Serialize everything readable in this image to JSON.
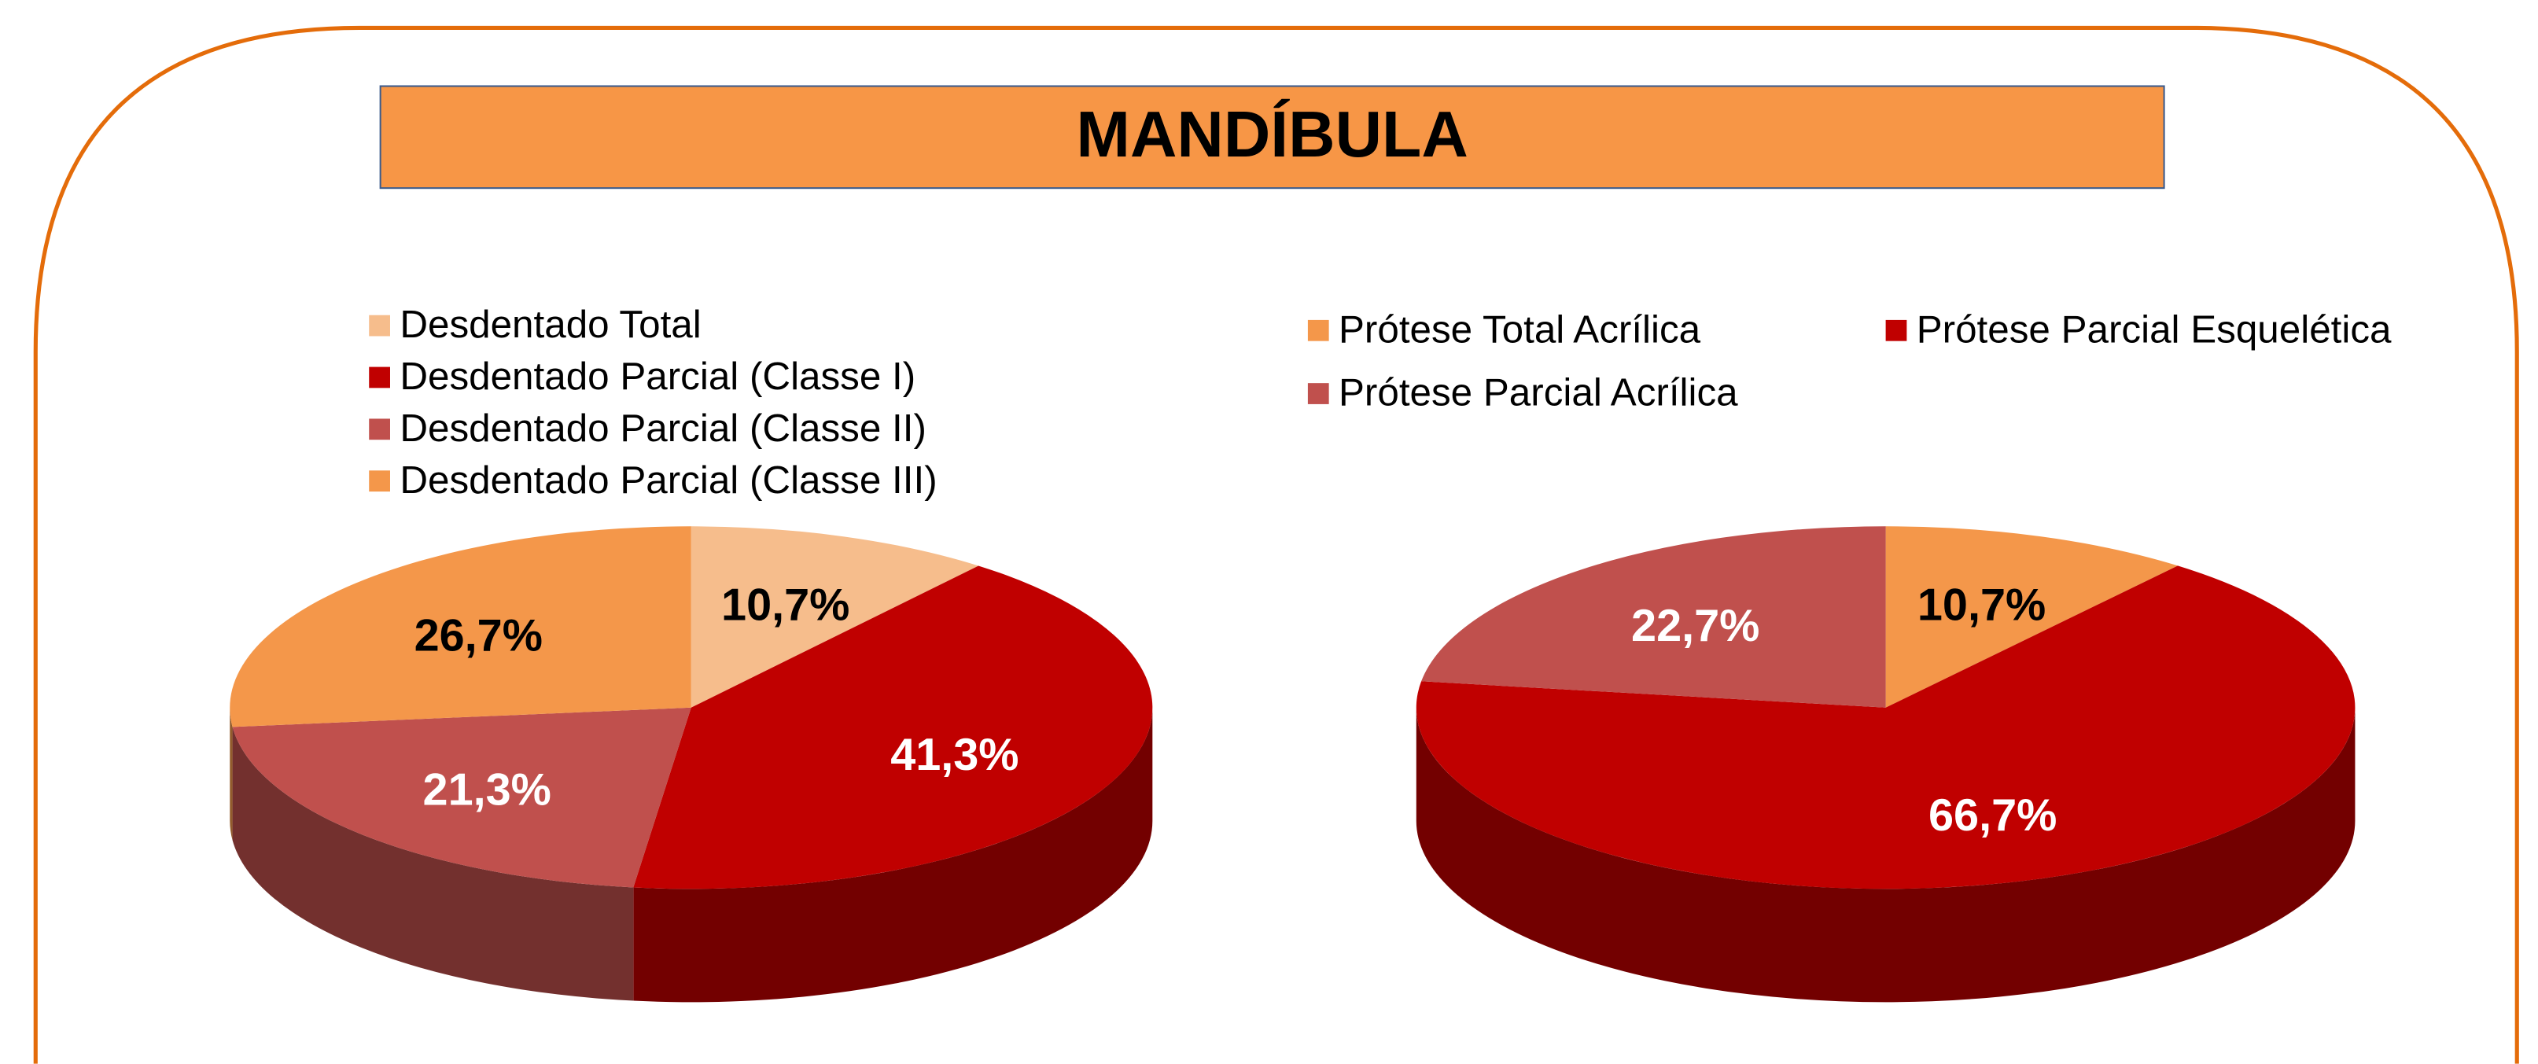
{
  "title": "MANDÍBULA",
  "chart_data": [
    {
      "type": "pie",
      "categories": [
        "Desdentado Total",
        "Desdentado Parcial (Classe I)",
        "Desdentado Parcial (Classe II)",
        "Desdentado Parcial (Classe III)"
      ],
      "values": [
        10.7,
        41.3,
        21.3,
        26.7
      ],
      "value_labels": [
        "10,7%",
        "41,3%",
        "21,3%",
        "26,7%"
      ],
      "colors": [
        "#f6bd8c",
        "#c00000",
        "#c0504d",
        "#f4974a"
      ]
    },
    {
      "type": "pie",
      "categories": [
        "Prótese Total Acrílica",
        "Prótese Parcial Esquelética",
        "Prótese Parcial Acrílica"
      ],
      "values": [
        10.7,
        66.7,
        22.7
      ],
      "value_labels": [
        "10,7%",
        "66,7%",
        "22,7%"
      ],
      "colors": [
        "#f4974a",
        "#c00000",
        "#c0504d"
      ]
    }
  ]
}
